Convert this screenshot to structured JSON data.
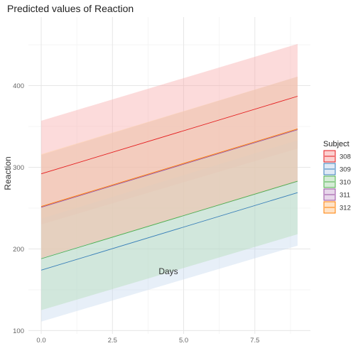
{
  "chart_data": {
    "type": "line",
    "title": "Predicted values of Reaction",
    "xlabel": "Days",
    "ylabel": "Reaction",
    "xlim": [
      -0.45,
      9.45
    ],
    "ylim": [
      96,
      484
    ],
    "x_ticks": [
      0.0,
      2.5,
      5.0,
      7.5
    ],
    "x_tick_labels": [
      "0.0",
      "2.5",
      "5.0",
      "7.5"
    ],
    "y_ticks": [
      100,
      200,
      300,
      400
    ],
    "y_tick_labels": [
      "100",
      "200",
      "300",
      "400"
    ],
    "grid": true,
    "legend": {
      "title": "Subject",
      "position": "right"
    },
    "x": [
      0,
      9
    ],
    "series": [
      {
        "name": "308",
        "color": "#e41a1c",
        "fill": "#f8a9aa",
        "values": [
          292,
          387
        ],
        "lower": [
          230,
          323
        ],
        "upper": [
          357,
          451
        ]
      },
      {
        "name": "309",
        "color": "#377eb8",
        "fill": "#c6d9ef",
        "values": [
          174,
          269
        ],
        "lower": [
          111,
          204
        ],
        "upper": [
          237,
          333
        ]
      },
      {
        "name": "310",
        "color": "#4daf4a",
        "fill": "#b3dcb4",
        "values": [
          188,
          283
        ],
        "lower": [
          125,
          218
        ],
        "upper": [
          251,
          347
        ]
      },
      {
        "name": "311",
        "color": "#984ea3",
        "fill": "#d3b7d8",
        "values": [
          251,
          346
        ],
        "lower": [
          188,
          282
        ],
        "upper": [
          315,
          411
        ]
      },
      {
        "name": "312",
        "color": "#ff7f00",
        "fill": "#ffcc99",
        "values": [
          252,
          347
        ],
        "lower": [
          189,
          283
        ],
        "upper": [
          316,
          411
        ]
      }
    ]
  }
}
